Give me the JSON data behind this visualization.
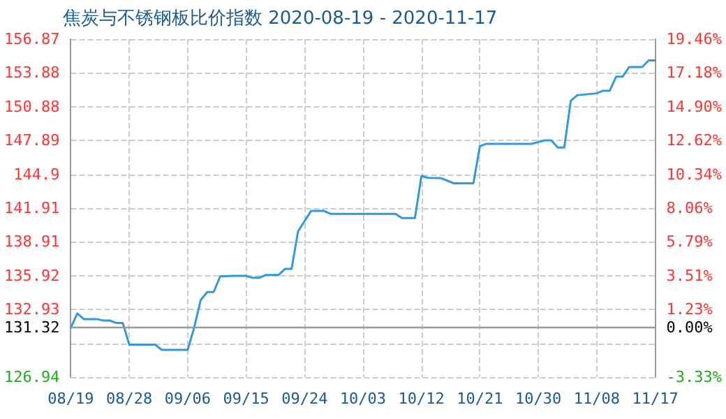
{
  "chart_data": {
    "type": "line",
    "title": "焦炭与不锈钢板比价指数 2020-08-19 - 2020-11-17",
    "x": [
      "2020-08-19",
      "2020-08-20",
      "2020-08-21",
      "2020-08-23",
      "2020-08-24",
      "2020-08-25",
      "2020-08-26",
      "2020-08-27",
      "2020-08-28",
      "2020-09-01",
      "2020-09-02",
      "2020-09-06",
      "2020-09-07",
      "2020-09-08",
      "2020-09-09",
      "2020-09-10",
      "2020-09-11",
      "2020-09-13",
      "2020-09-15",
      "2020-09-16",
      "2020-09-17",
      "2020-09-18",
      "2020-09-20",
      "2020-09-21",
      "2020-09-22",
      "2020-09-23",
      "2020-09-25",
      "2020-09-27",
      "2020-09-28",
      "2020-10-08",
      "2020-10-09",
      "2020-10-11",
      "2020-10-12",
      "2020-10-13",
      "2020-10-15",
      "2020-10-17",
      "2020-10-20",
      "2020-10-21",
      "2020-10-22",
      "2020-10-29",
      "2020-10-31",
      "2020-11-01",
      "2020-11-02",
      "2020-11-03",
      "2020-11-04",
      "2020-11-05",
      "2020-11-08",
      "2020-11-09",
      "2020-11-10",
      "2020-11-11",
      "2020-11-12",
      "2020-11-13",
      "2020-11-15",
      "2020-11-16",
      "2020-11-17"
    ],
    "series": [
      {
        "color": "#3399dd",
        "values": [
          131.32,
          132.58,
          132.08,
          132.08,
          131.95,
          131.95,
          131.74,
          131.74,
          129.81,
          129.81,
          129.35,
          129.35,
          131.32,
          133.76,
          134.47,
          134.47,
          135.86,
          135.9,
          135.9,
          135.73,
          135.73,
          135.98,
          135.98,
          136.53,
          136.53,
          139.85,
          141.65,
          141.65,
          141.4,
          141.4,
          141.02,
          141.02,
          144.75,
          144.58,
          144.56,
          144.1,
          144.1,
          147.38,
          147.6,
          147.6,
          147.9,
          147.9,
          147.27,
          147.27,
          151.4,
          151.9,
          152.07,
          152.3,
          152.3,
          153.55,
          153.55,
          154.4,
          154.4,
          154.98,
          154.98
        ]
      }
    ],
    "xlim": [
      "2020-08-19",
      "2020-11-17"
    ],
    "xticks": [
      {
        "value": "2020-08-19",
        "label": "08/19"
      },
      {
        "value": "2020-08-28",
        "label": "08/28"
      },
      {
        "value": "2020-09-06",
        "label": "09/06"
      },
      {
        "value": "2020-09-15",
        "label": "09/15"
      },
      {
        "value": "2020-09-24",
        "label": "09/24"
      },
      {
        "value": "2020-10-03",
        "label": "10/03"
      },
      {
        "value": "2020-10-12",
        "label": "10/12"
      },
      {
        "value": "2020-10-21",
        "label": "10/21"
      },
      {
        "value": "2020-10-30",
        "label": "10/30"
      },
      {
        "value": "2020-11-08",
        "label": "11/08"
      },
      {
        "value": "2020-11-17",
        "label": "11/17"
      }
    ],
    "ylim": [
      126.94,
      156.87
    ],
    "yticks": [
      126.94,
      {
        "value": 129.93,
        "label": null
      },
      131.32,
      132.93,
      135.92,
      138.91,
      141.91,
      144.9,
      147.89,
      150.88,
      153.88,
      156.87
    ],
    "y2lim": [
      -3.33,
      19.46
    ],
    "y2ticks": [
      {
        "value": -3.33,
        "label": "-3.33%"
      },
      {
        "value": 0,
        "label": "0.00%"
      },
      {
        "value": 1.23,
        "label": "1.23%"
      },
      {
        "value": 3.51,
        "label": "3.51%"
      },
      {
        "value": 5.79,
        "label": "5.79%"
      },
      {
        "value": 8.06,
        "label": "8.06%"
      },
      {
        "value": 10.34,
        "label": "10.34%"
      },
      {
        "value": 12.62,
        "label": "12.62%"
      },
      {
        "value": 14.9,
        "label": "14.90%"
      },
      {
        "value": 17.18,
        "label": "17.18%"
      },
      {
        "value": 19.46,
        "label": "19.46%"
      }
    ],
    "ref_lines": [
      {
        "axis": "y",
        "value": 131.32,
        "color": "#999999",
        "line_style": "solid"
      }
    ],
    "grid": true,
    "marker": "none",
    "line_style": "solid"
  }
}
